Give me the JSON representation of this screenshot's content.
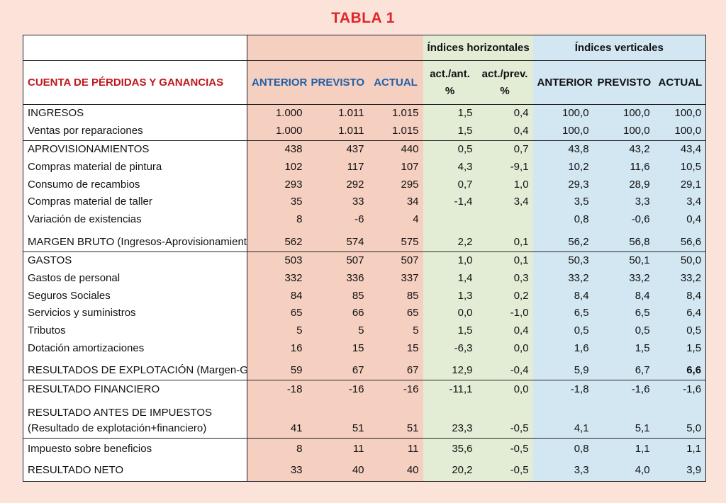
{
  "title": "TABLA 1",
  "header": {
    "group_horizontal": "Índices horizontales",
    "group_vertical": "Índices verticales",
    "section_label": "CUENTA DE PÉRDIDAS Y GANANCIAS",
    "col_anterior": "ANTERIOR",
    "col_previsto": "PREVISTO",
    "col_actual": "ACTUAL",
    "col_act_ant_1": "act./ant.",
    "col_act_ant_2": "%",
    "col_act_prev_1": "act./prev.",
    "col_act_prev_2": "%",
    "col_v_anterior": "ANTERIOR",
    "col_v_previsto": "PREVISTO",
    "col_v_actual": "ACTUAL"
  },
  "rows": [
    {
      "label": "INGRESOS",
      "ant": "1.000",
      "prev": "1.011",
      "act": "1.015",
      "h_ant": "1,5",
      "h_prev": "0,4",
      "v_ant": "100,0",
      "v_prev": "100,0",
      "v_act": "100,0"
    },
    {
      "label": "Ventas por reparaciones",
      "ant": "1.000",
      "prev": "1.011",
      "act": "1.015",
      "h_ant": "1,5",
      "h_prev": "0,4",
      "v_ant": "100,0",
      "v_prev": "100,0",
      "v_act": "100,0"
    },
    {
      "label": "APROVISIONAMIENTOS",
      "ant": "438",
      "prev": "437",
      "act": "440",
      "h_ant": "0,5",
      "h_prev": "0,7",
      "v_ant": "43,8",
      "v_prev": "43,2",
      "v_act": "43,4"
    },
    {
      "label": "Compras material de pintura",
      "ant": "102",
      "prev": "117",
      "act": "107",
      "h_ant": "4,3",
      "h_prev": "-9,1",
      "v_ant": "10,2",
      "v_prev": "11,6",
      "v_act": "10,5"
    },
    {
      "label": "Consumo de recambios",
      "ant": "293",
      "prev": "292",
      "act": "295",
      "h_ant": "0,7",
      "h_prev": "1,0",
      "v_ant": "29,3",
      "v_prev": "28,9",
      "v_act": "29,1"
    },
    {
      "label": "Compras material de taller",
      "ant": "35",
      "prev": "33",
      "act": "34",
      "h_ant": "-1,4",
      "h_prev": "3,4",
      "v_ant": "3,5",
      "v_prev": "3,3",
      "v_act": "3,4"
    },
    {
      "label": "Variación de existencias",
      "ant": "8",
      "prev": "-6",
      "act": "4",
      "h_ant": "",
      "h_prev": "",
      "v_ant": "0,8",
      "v_prev": "-0,6",
      "v_act": "0,4"
    },
    {
      "label": "MARGEN BRUTO (Ingresos-Aprovisionamiento)",
      "ant": "562",
      "prev": "574",
      "act": "575",
      "h_ant": "2,2",
      "h_prev": "0,1",
      "v_ant": "56,2",
      "v_prev": "56,8",
      "v_act": "56,6"
    },
    {
      "label": "GASTOS",
      "ant": "503",
      "prev": "507",
      "act": "507",
      "h_ant": "1,0",
      "h_prev": "0,1",
      "v_ant": "50,3",
      "v_prev": "50,1",
      "v_act": "50,0"
    },
    {
      "label": "Gastos de personal",
      "ant": "332",
      "prev": "336",
      "act": "337",
      "h_ant": "1,4",
      "h_prev": "0,3",
      "v_ant": "33,2",
      "v_prev": "33,2",
      "v_act": "33,2"
    },
    {
      "label": "Seguros Sociales",
      "ant": "84",
      "prev": "85",
      "act": "85",
      "h_ant": "1,3",
      "h_prev": "0,2",
      "v_ant": "8,4",
      "v_prev": "8,4",
      "v_act": "8,4"
    },
    {
      "label": "Servicios y suministros",
      "ant": "65",
      "prev": "66",
      "act": "65",
      "h_ant": "0,0",
      "h_prev": "-1,0",
      "v_ant": "6,5",
      "v_prev": "6,5",
      "v_act": "6,4"
    },
    {
      "label": "Tributos",
      "ant": "5",
      "prev": "5",
      "act": "5",
      "h_ant": "1,5",
      "h_prev": "0,4",
      "v_ant": "0,5",
      "v_prev": "0,5",
      "v_act": "0,5"
    },
    {
      "label": "Dotación amortizaciones",
      "ant": "16",
      "prev": "15",
      "act": "15",
      "h_ant": "-6,3",
      "h_prev": "0,0",
      "v_ant": "1,6",
      "v_prev": "1,5",
      "v_act": "1,5"
    },
    {
      "label": "RESULTADOS DE EXPLOTACIÓN (Margen-Gastos)",
      "ant": "59",
      "prev": "67",
      "act": "67",
      "h_ant": "12,9",
      "h_prev": "-0,4",
      "v_ant": "5,9",
      "v_prev": "6,7",
      "v_act": "6,6"
    },
    {
      "label": "RESULTADO FINANCIERO",
      "ant": "-18",
      "prev": "-16",
      "act": "-16",
      "h_ant": "-11,1",
      "h_prev": "0,0",
      "v_ant": "-1,8",
      "v_prev": "-1,6",
      "v_act": "-1,6"
    },
    {
      "label": "RESULTADO ANTES DE IMPUESTOS",
      "label2": "(Resultado de explotación+financiero)",
      "ant": "41",
      "prev": "51",
      "act": "51",
      "h_ant": "23,3",
      "h_prev": "-0,5",
      "v_ant": "4,1",
      "v_prev": "5,1",
      "v_act": "5,0"
    },
    {
      "label": "Impuesto sobre beneficios",
      "ant": "8",
      "prev": "11",
      "act": "11",
      "h_ant": "35,6",
      "h_prev": "-0,5",
      "v_ant": "0,8",
      "v_prev": "1,1",
      "v_act": "1,1"
    },
    {
      "label": "RESULTADO NETO",
      "ant": "33",
      "prev": "40",
      "act": "40",
      "h_ant": "20,2",
      "h_prev": "-0,5",
      "v_ant": "3,3",
      "v_prev": "4,0",
      "v_act": "3,9"
    }
  ]
}
